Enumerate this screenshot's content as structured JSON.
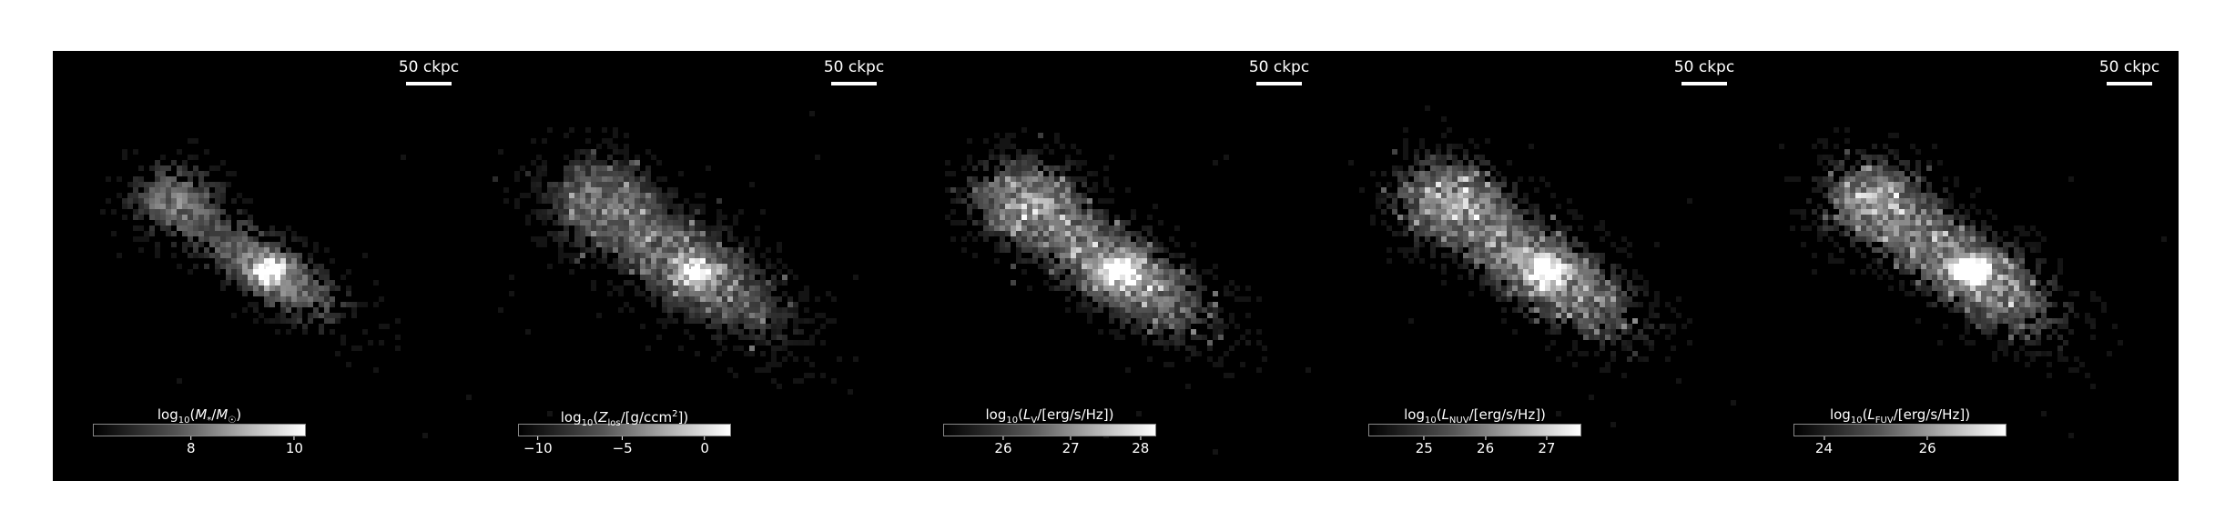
{
  "panels": [
    {
      "scale_label": "50 ckpc",
      "colorbar_label": "log10(M*/M☉)",
      "ticks": [
        {
          "label": "8",
          "frac": 0.46
        },
        {
          "label": "10",
          "frac": 0.95
        }
      ],
      "brightness": 0.9,
      "spread": 0.55
    },
    {
      "scale_label": "50 ckpc",
      "colorbar_label": "log10(Zlos/[g/ccm2])",
      "ticks": [
        {
          "label": "−10",
          "frac": 0.09
        },
        {
          "label": "−5",
          "frac": 0.49
        },
        {
          "label": "0",
          "frac": 0.88
        }
      ],
      "brightness": 0.75,
      "spread": 1.0
    },
    {
      "scale_label": "50 ckpc",
      "colorbar_label": "log10(LV/[erg/s/Hz])",
      "ticks": [
        {
          "label": "26",
          "frac": 0.28
        },
        {
          "label": "27",
          "frac": 0.6
        },
        {
          "label": "28",
          "frac": 0.93
        }
      ],
      "brightness": 0.95,
      "spread": 0.9
    },
    {
      "scale_label": "50 ckpc",
      "colorbar_label": "log10(LNUV/[erg/s/Hz])",
      "ticks": [
        {
          "label": "25",
          "frac": 0.26
        },
        {
          "label": "26",
          "frac": 0.55
        },
        {
          "label": "27",
          "frac": 0.84
        }
      ],
      "brightness": 1.0,
      "spread": 0.9
    },
    {
      "scale_label": "50 ckpc",
      "colorbar_label": "log10(LFUV/[erg/s/Hz])",
      "ticks": [
        {
          "label": "24",
          "frac": 0.14
        },
        {
          "label": "26",
          "frac": 0.63
        }
      ],
      "brightness": 1.0,
      "spread": 0.9
    }
  ]
}
